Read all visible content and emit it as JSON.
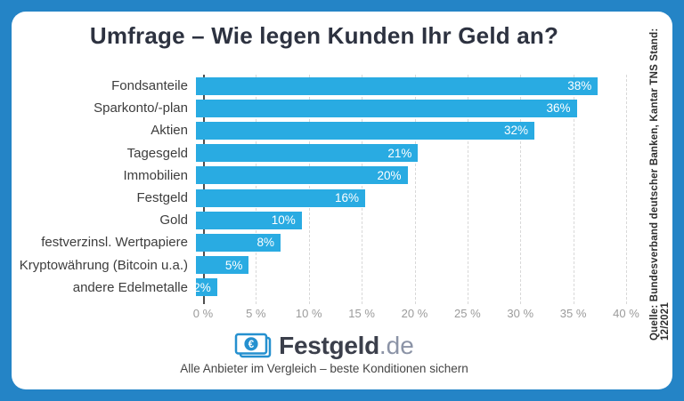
{
  "title": "Umfrage – Wie legen Kunden Ihr Geld an?",
  "source_note": "Quelle: Bundesverband deutscher Banken, Kantar TNS Stand: 12/2021",
  "chart_data": {
    "type": "bar",
    "orientation": "horizontal",
    "title": "Umfrage – Wie legen Kunden Ihr Geld an?",
    "categories": [
      "Fondsanteile",
      "Sparkonto/-plan",
      "Aktien",
      "Tagesgeld",
      "Immobilien",
      "Festgeld",
      "Gold",
      "festverzinsl. Wertpapiere",
      "Kryptowährung (Bitcoin u.a.)",
      "andere Edelmetalle"
    ],
    "values": [
      38,
      36,
      32,
      21,
      20,
      16,
      10,
      8,
      5,
      2
    ],
    "value_labels": [
      "38%",
      "36%",
      "32%",
      "21%",
      "20%",
      "16%",
      "10%",
      "8%",
      "5%",
      "2%"
    ],
    "xlabel": "",
    "ylabel": "",
    "xlim": [
      0,
      40
    ],
    "x_ticks": [
      "0 %",
      "5 %",
      "10 %",
      "15 %",
      "20 %",
      "25 %",
      "30 %",
      "35 %",
      "40 %"
    ],
    "x_tick_values": [
      0,
      5,
      10,
      15,
      20,
      25,
      30,
      35,
      40
    ],
    "grid": "vertical-dashed",
    "legend": "none",
    "bar_color": "#29abe2"
  },
  "footer": {
    "logo_icon": "euro-banknote-icon",
    "logo_text": "Festgeld",
    "logo_suffix": ".de",
    "tagline": "Alle Anbieter im Vergleich – beste Konditionen sichern"
  },
  "colors": {
    "frame": "#2484c6",
    "card_background": "#ffffff",
    "bar": "#29abe2",
    "title_text": "#2d3240",
    "category_text": "#3d3d3d",
    "tick_text": "#9b9b9b",
    "gridline": "#d8d8d8",
    "axis_line": "#4f4f4f",
    "bar_value_text": "#ffffff"
  }
}
